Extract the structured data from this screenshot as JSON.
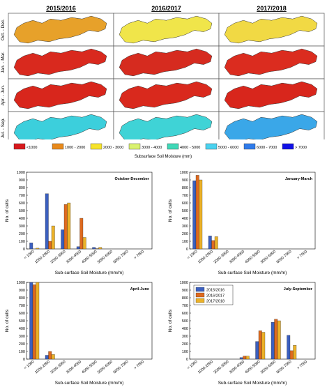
{
  "maps": {
    "columns": [
      "2015/2016",
      "2016/2017",
      "2017/2018"
    ],
    "rows": [
      "Oct. - Dec.",
      "Jan. - Mar.",
      "Apr. - Jun.",
      "Jul. - Sep."
    ],
    "cell_colors": [
      [
        "#e7a12a",
        "#f0e54a",
        "#f1d944"
      ],
      [
        "#d9291e",
        "#d62b1f",
        "#db2c1f"
      ],
      [
        "#d8261c",
        "#d9291d",
        "#d8261c"
      ],
      [
        "#3ccfdc",
        "#3fd3d6",
        "#3aa7e8"
      ]
    ]
  },
  "legend": {
    "title": "Subsurface Soil Moisture (mm)",
    "items": [
      {
        "label": "<1000",
        "color": "#d7191c"
      },
      {
        "label": "1000 - 2000",
        "color": "#e8891b"
      },
      {
        "label": "2000 - 3000",
        "color": "#f6e32b"
      },
      {
        "label": "3000 - 4000",
        "color": "#d9f26f"
      },
      {
        "label": "4000 - 5000",
        "color": "#3fd8b7"
      },
      {
        "label": "5000 - 6000",
        "color": "#4ad2ef"
      },
      {
        "label": "6000 - 7000",
        "color": "#2f7bea"
      },
      {
        "label": "> 7000",
        "color": "#1010e6"
      }
    ]
  },
  "chart_data": [
    {
      "type": "bar",
      "title": "October-December",
      "xlabel": "Sub-surface Soil Moisture (mm/m)",
      "ylabel": "No. of cells",
      "ylim": [
        0,
        1000
      ],
      "yticks": [
        0,
        100,
        200,
        300,
        400,
        500,
        600,
        700,
        800,
        900,
        1000
      ],
      "categories": [
        "< 1000",
        "1000-2000",
        "2000-3000",
        "3000-4000",
        "4000-5000",
        "5000-6000",
        "6000-7000",
        "> 7000"
      ],
      "series": [
        {
          "name": "2015/2016",
          "values": [
            80,
            720,
            250,
            30,
            20,
            0,
            0,
            0
          ]
        },
        {
          "name": "2016/2017",
          "values": [
            0,
            100,
            580,
            400,
            5,
            0,
            0,
            0
          ]
        },
        {
          "name": "2017/2018",
          "values": [
            10,
            300,
            600,
            150,
            20,
            0,
            0,
            0
          ]
        }
      ]
    },
    {
      "type": "bar",
      "title": "January-March",
      "xlabel": "Sub-surface Soil Moisture (mm/m)",
      "ylabel": "No. of cells",
      "ylim": [
        0,
        1000
      ],
      "yticks": [
        0,
        100,
        200,
        300,
        400,
        500,
        600,
        700,
        800,
        900,
        1000
      ],
      "categories": [
        "< 1000",
        "1000-2000",
        "2000-3000",
        "3000-4000",
        "4000-5000",
        "5000-6000",
        "6000-7000",
        "> 7000"
      ],
      "series": [
        {
          "name": "2015/2016",
          "values": [
            890,
            170,
            0,
            0,
            0,
            0,
            0,
            0
          ]
        },
        {
          "name": "2016/2017",
          "values": [
            960,
            110,
            0,
            0,
            0,
            0,
            0,
            0
          ]
        },
        {
          "name": "2017/2018",
          "values": [
            900,
            160,
            0,
            0,
            0,
            0,
            0,
            0
          ]
        }
      ]
    },
    {
      "type": "bar",
      "title": "April-June",
      "xlabel": "Sub-surface Soil Moisture (mm/m)",
      "ylabel": "No. of cells",
      "ylim": [
        0,
        1000
      ],
      "yticks": [
        0,
        100,
        200,
        300,
        400,
        500,
        600,
        700,
        800,
        900,
        1000
      ],
      "categories": [
        "< 1000",
        "1000-2000",
        "2000-3000",
        "3000-4000",
        "4000-5000",
        "5000-6000",
        "6000-7000",
        "> 7000"
      ],
      "series": [
        {
          "name": "2015/2016",
          "values": [
            1030,
            50,
            0,
            0,
            0,
            0,
            0,
            0
          ]
        },
        {
          "name": "2016/2017",
          "values": [
            970,
            100,
            0,
            0,
            0,
            0,
            0,
            0
          ]
        },
        {
          "name": "2017/2018",
          "values": [
            1020,
            60,
            0,
            0,
            0,
            0,
            0,
            0
          ]
        }
      ]
    },
    {
      "type": "bar",
      "title": "July-September",
      "xlabel": "Sub-surface Soil Moisture (mm/m)",
      "ylabel": "No. of cells",
      "ylim": [
        0,
        1000
      ],
      "yticks": [
        0,
        100,
        200,
        300,
        400,
        500,
        600,
        700,
        800,
        900,
        1000
      ],
      "legend_position": "top-left",
      "categories": [
        "< 1000",
        "1000-2000",
        "2000-3000",
        "3000-4000",
        "4000-5000",
        "5000-6000",
        "6000-7000",
        "> 7000"
      ],
      "series": [
        {
          "name": "2015/2016",
          "values": [
            0,
            0,
            0,
            20,
            230,
            480,
            310,
            0
          ]
        },
        {
          "name": "2016/2017",
          "values": [
            0,
            0,
            0,
            40,
            370,
            520,
            110,
            0
          ]
        },
        {
          "name": "2017/2018",
          "values": [
            0,
            0,
            0,
            40,
            350,
            500,
            180,
            0
          ]
        }
      ]
    }
  ],
  "colors": {
    "series": [
      "#3b5fbf",
      "#de6a1f",
      "#ecb228"
    ]
  }
}
